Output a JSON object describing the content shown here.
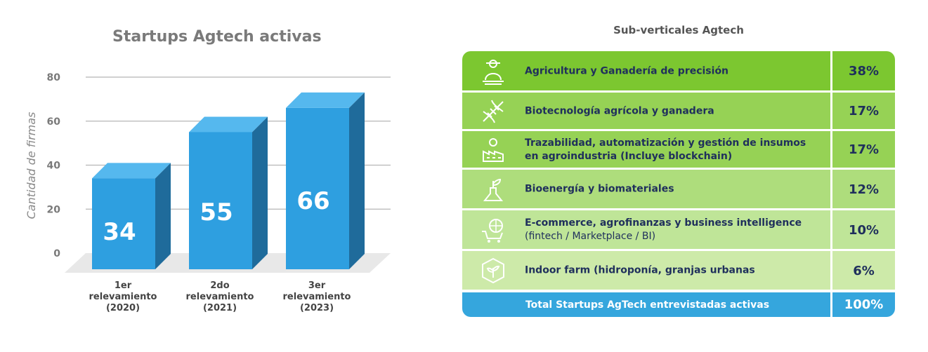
{
  "chart_data": {
    "type": "bar",
    "title": "Startups Agtech activas",
    "ylabel": "Cantidad de firmas",
    "xlabel": "",
    "ylim": [
      0,
      80
    ],
    "yticks": [
      0,
      20,
      40,
      60,
      80
    ],
    "grid": true,
    "categories": [
      [
        "1er",
        "relevamiento",
        "(2020)"
      ],
      [
        "2do",
        "relevamiento",
        "(2021)"
      ],
      [
        "3er",
        "relevamiento",
        "(2023)"
      ]
    ],
    "values": [
      34,
      55,
      66
    ],
    "colors": {
      "front": "#2e9fe0",
      "top": "#55b8ee",
      "side": "#1f6b9b",
      "floor": "#e8e8e8"
    }
  },
  "table": {
    "title": "Sub-verticales Agtech",
    "rows": [
      {
        "icon": "farmer-icon",
        "line1": "Agricultura y Ganadería de precisión",
        "line2": "",
        "pct": "38%",
        "bg": "#7cc730"
      },
      {
        "icon": "dna-icon",
        "line1": "Biotecnología agrícola y ganadera",
        "line2": "",
        "pct": "17%",
        "bg": "#96d255"
      },
      {
        "icon": "factory-gear-icon",
        "line1": "Trazabilidad, automatización y gestión de insumos",
        "line2": "en agroindustria (Incluye blockchain)",
        "pct": "17%",
        "bg": "#96d255"
      },
      {
        "icon": "flask-leaf-icon",
        "line1": "Bioenergía y biomateriales",
        "line2": "",
        "pct": "12%",
        "bg": "#aedd7c"
      },
      {
        "icon": "cart-globe-icon",
        "line1": "E-commerce, agrofinanzas y business intelligence",
        "line2": "(fintech / Marketplace / BI)",
        "pct": "10%",
        "bg": "#bfe598"
      },
      {
        "icon": "hexagon-plant-icon",
        "line1": "Indoor farm (hidroponía, granjas urbanas",
        "line2": "",
        "pct": "6%",
        "bg": "#cdeaa9"
      }
    ],
    "total": {
      "label": "Total Startups AgTech entrevistadas activas",
      "pct": "100%",
      "bg": "#35a6dd"
    }
  }
}
